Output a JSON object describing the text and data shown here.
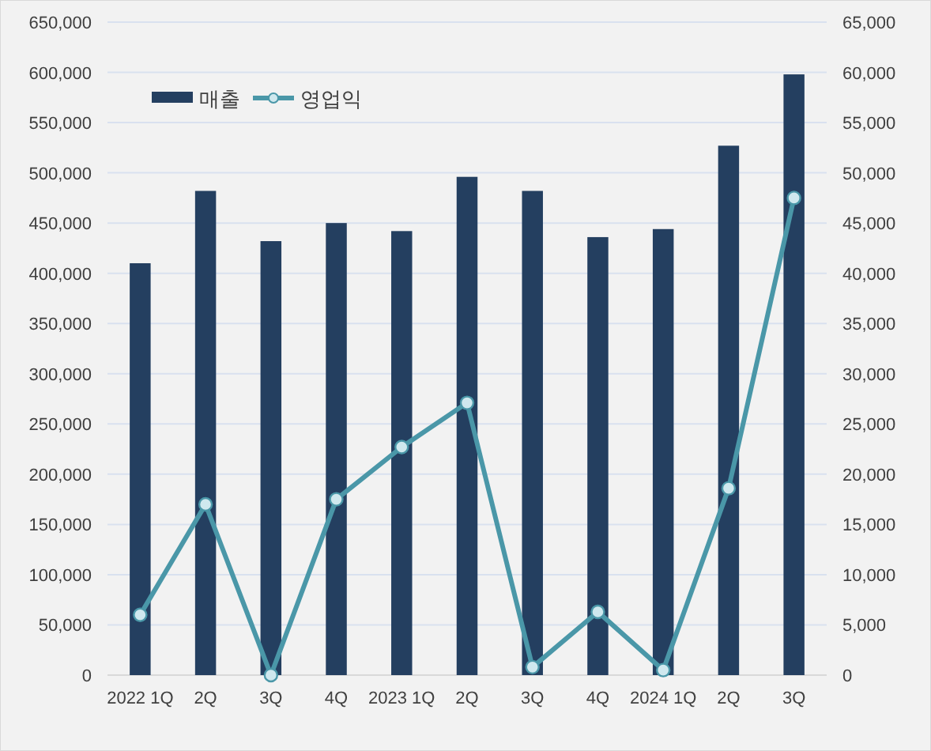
{
  "chart_data": {
    "type": "bar",
    "categories": [
      "2022 1Q",
      "2Q",
      "3Q",
      "4Q",
      "2023 1Q",
      "2Q",
      "3Q",
      "4Q",
      "2024 1Q",
      "2Q",
      "3Q"
    ],
    "series": [
      {
        "name": "매출",
        "color": "#243f60",
        "values": [
          410000,
          482000,
          432000,
          450000,
          442000,
          496000,
          482000,
          436000,
          444000,
          527000,
          598000
        ]
      },
      {
        "name": "영업익",
        "type": "line",
        "axis": "y2",
        "color": "#4a97a8",
        "marker": "circle",
        "values": [
          6000,
          17000,
          0,
          17500,
          22700,
          27100,
          800,
          6300,
          500,
          18600,
          47500
        ]
      }
    ],
    "ylim": [
      0,
      650000
    ],
    "yticks": [
      {
        "value": 0,
        "label": "0"
      },
      {
        "value": 50000,
        "label": "50,000"
      },
      {
        "value": 100000,
        "label": "100,000"
      },
      {
        "value": 150000,
        "label": "150,000"
      },
      {
        "value": 200000,
        "label": "200,000"
      },
      {
        "value": 250000,
        "label": "250,000"
      },
      {
        "value": 300000,
        "label": "300,000"
      },
      {
        "value": 350000,
        "label": "350,000"
      },
      {
        "value": 400000,
        "label": "400,000"
      },
      {
        "value": 450000,
        "label": "450,000"
      },
      {
        "value": 500000,
        "label": "500,000"
      },
      {
        "value": 550000,
        "label": "550,000"
      },
      {
        "value": 600000,
        "label": "600,000"
      },
      {
        "value": 650000,
        "label": "650,000"
      }
    ],
    "y2lim": [
      0,
      65000
    ],
    "y2ticks": [
      {
        "value": 0,
        "label": "0"
      },
      {
        "value": 5000,
        "label": "5,000"
      },
      {
        "value": 10000,
        "label": "10,000"
      },
      {
        "value": 15000,
        "label": "15,000"
      },
      {
        "value": 20000,
        "label": "20,000"
      },
      {
        "value": 25000,
        "label": "25,000"
      },
      {
        "value": 30000,
        "label": "30,000"
      },
      {
        "value": 35000,
        "label": "35,000"
      },
      {
        "value": 40000,
        "label": "40,000"
      },
      {
        "value": 45000,
        "label": "45,000"
      },
      {
        "value": 50000,
        "label": "50,000"
      },
      {
        "value": 55000,
        "label": "55,000"
      },
      {
        "value": 60000,
        "label": "60,000"
      },
      {
        "value": 65000,
        "label": "65,000"
      }
    ],
    "grid": "y",
    "legend": "top left"
  }
}
